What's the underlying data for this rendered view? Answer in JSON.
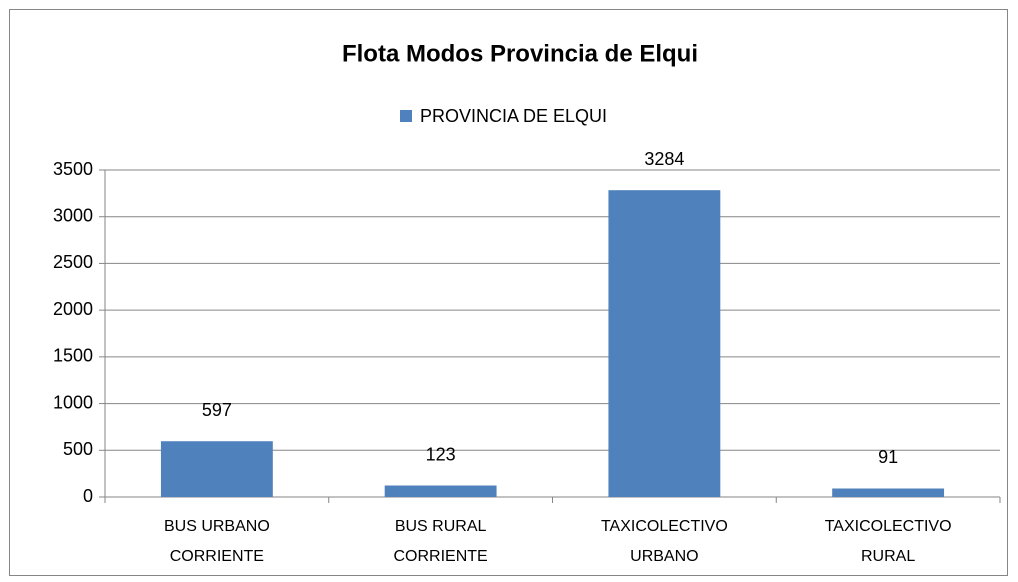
{
  "chart_data": {
    "type": "bar",
    "title": "Flota Modos Provincia de Elqui",
    "categories": [
      "BUS URBANO CORRIENTE",
      "BUS RURAL CORRIENTE",
      "TAXICOLECTIVO URBANO",
      "TAXICOLECTIVO RURAL"
    ],
    "series": [
      {
        "name": "PROVINCIA DE ELQUI",
        "color": "#4f81bd",
        "values": [
          597,
          123,
          3284,
          91
        ]
      }
    ],
    "ylim": [
      0,
      3500
    ],
    "yticks": [
      0,
      500,
      1000,
      1500,
      2000,
      2500,
      3000,
      3500
    ],
    "grid": true,
    "legend": "top"
  }
}
